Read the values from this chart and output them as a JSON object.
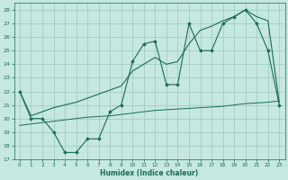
{
  "x": [
    0,
    1,
    2,
    3,
    4,
    5,
    6,
    7,
    8,
    9,
    10,
    11,
    12,
    13,
    14,
    15,
    16,
    17,
    18,
    19,
    20,
    21,
    22,
    23
  ],
  "line_zigzag_y": [
    22,
    20,
    20,
    19,
    17.5,
    17.5,
    18.5,
    18.5,
    20.5,
    21,
    24.2,
    25.5,
    25.7,
    22.5,
    22.5,
    27,
    25,
    25,
    27,
    27.5,
    28,
    27,
    25,
    21
  ],
  "line_smooth_y": [
    22,
    20.2,
    20.5,
    20.8,
    21.0,
    21.2,
    21.5,
    21.8,
    22.1,
    22.4,
    23.5,
    24.0,
    24.5,
    24.0,
    24.2,
    25.5,
    26.5,
    26.8,
    27.2,
    27.5,
    28.0,
    27.5,
    27.2,
    21.2
  ],
  "line_flat_y": [
    19.5,
    19.6,
    19.7,
    19.8,
    19.9,
    20.0,
    20.1,
    20.15,
    20.2,
    20.3,
    20.4,
    20.5,
    20.6,
    20.65,
    20.7,
    20.75,
    20.8,
    20.85,
    20.9,
    21.0,
    21.1,
    21.15,
    21.2,
    21.3
  ],
  "line_color": "#1a6b5a",
  "bg_color": "#c5e8e0",
  "grid_color": "#9dc8bf",
  "xlabel": "Humidex (Indice chaleur)",
  "ylim": [
    17,
    28.5
  ],
  "xlim": [
    -0.5,
    23.5
  ],
  "yticks": [
    17,
    18,
    19,
    20,
    21,
    22,
    23,
    24,
    25,
    26,
    27,
    28
  ],
  "xticks": [
    0,
    1,
    2,
    3,
    4,
    5,
    6,
    7,
    8,
    9,
    10,
    11,
    12,
    13,
    14,
    15,
    16,
    17,
    18,
    19,
    20,
    21,
    22,
    23
  ]
}
